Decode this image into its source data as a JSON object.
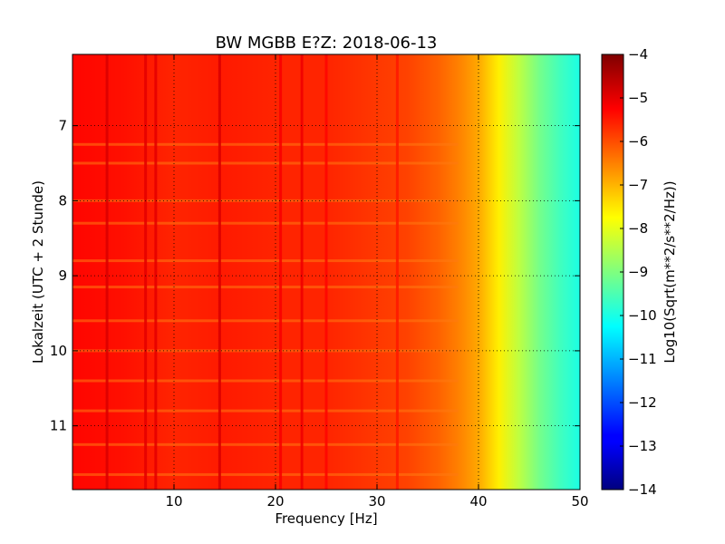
{
  "chart_data": {
    "type": "heatmap",
    "title": "BW MGBB E?Z: 2018-06-13",
    "xlabel": "Frequency [Hz]",
    "ylabel": "Lokalzeit (UTC + 2 Stunde)",
    "colorbar_label": "Log10(Sqrt(m**2/s**2/Hz))",
    "xlim": [
      0,
      50
    ],
    "ylim": [
      11.85,
      6.05
    ],
    "x_ticks": [
      10,
      20,
      30,
      40,
      50
    ],
    "x_tick_labels": [
      "10",
      "20",
      "30",
      "40",
      "50"
    ],
    "y_ticks": [
      7,
      8,
      9,
      10,
      11
    ],
    "y_tick_labels": [
      "7",
      "8",
      "9",
      "10",
      "11"
    ],
    "y_axis_inverted": true,
    "colorbar_range": [
      -14,
      -4
    ],
    "colorbar_ticks": [
      -4,
      -5,
      -6,
      -7,
      -8,
      -9,
      -10,
      -11,
      -12,
      -13,
      -14
    ],
    "colorbar_tick_labels": [
      "−4",
      "−5",
      "−6",
      "−7",
      "−8",
      "−9",
      "−10",
      "−11",
      "−12",
      "−13",
      "−14"
    ],
    "colormap": "jet",
    "grid": true,
    "spectrum_profile": {
      "frequency_hz": [
        0,
        5,
        10,
        15,
        20,
        25,
        30,
        33,
        36,
        38,
        40,
        42,
        44,
        46,
        48,
        50
      ],
      "log10_amplitude": [
        -5.3,
        -5.4,
        -5.6,
        -5.5,
        -5.6,
        -5.6,
        -5.8,
        -5.9,
        -6.2,
        -6.5,
        -6.9,
        -7.6,
        -8.4,
        -9.1,
        -9.6,
        -10.0
      ]
    },
    "spectral_lines": [
      {
        "frequency_hz": 3.4,
        "log10_amplitude": -4.9
      },
      {
        "frequency_hz": 7.2,
        "log10_amplitude": -5.0
      },
      {
        "frequency_hz": 8.2,
        "log10_amplitude": -5.0
      },
      {
        "frequency_hz": 14.5,
        "log10_amplitude": -4.9
      },
      {
        "frequency_hz": 20.5,
        "log10_amplitude": -5.2
      },
      {
        "frequency_hz": 22.6,
        "log10_amplitude": -5.1
      },
      {
        "frequency_hz": 25.0,
        "log10_amplitude": -5.3
      },
      {
        "frequency_hz": 32.0,
        "log10_amplitude": -5.5
      }
    ],
    "horizontal_bands_hour": [
      7.25,
      7.5,
      8.0,
      8.3,
      8.8,
      9.15,
      9.6,
      10.0,
      10.4,
      10.8,
      11.25,
      11.65
    ]
  }
}
